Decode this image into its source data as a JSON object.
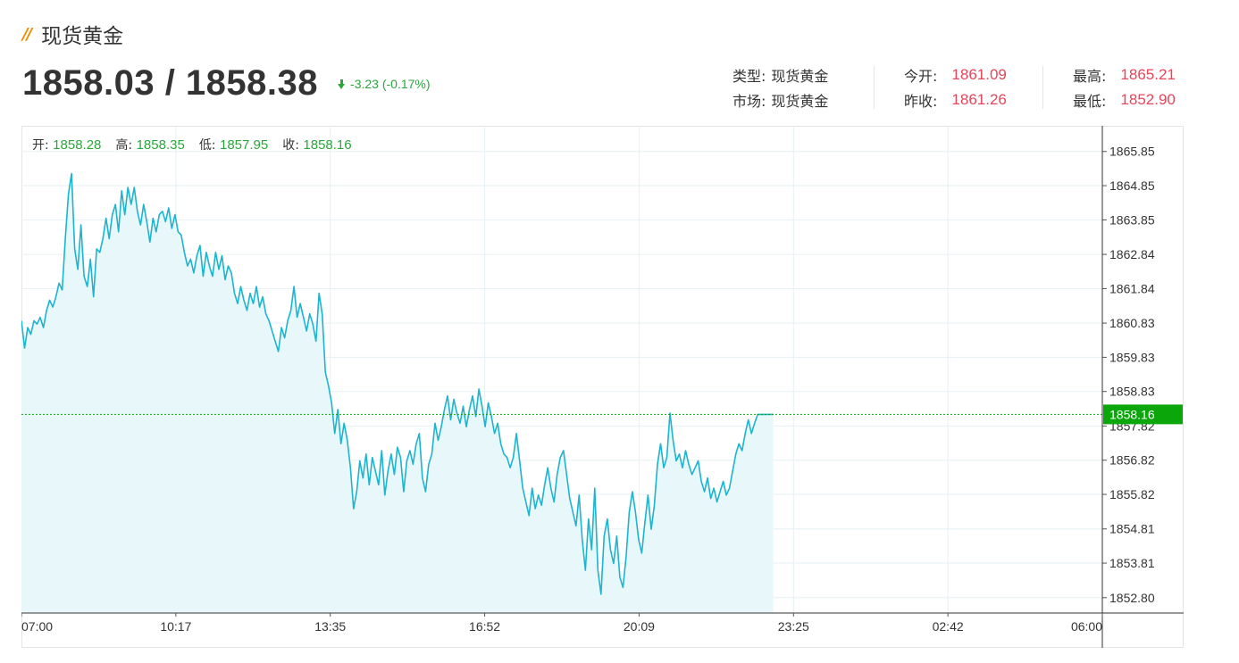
{
  "header": {
    "title_mark": "//",
    "title": "现货黄金",
    "price": "1858.03 / 1858.38",
    "change": "-3.23 (-0.17%)"
  },
  "info": {
    "type_label": "类型:",
    "type_value": "现货黄金",
    "market_label": "市场:",
    "market_value": "现货黄金",
    "open_label": "今开:",
    "open_value": "1861.09",
    "prev_close_label": "昨收:",
    "prev_close_value": "1861.26",
    "high_label": "最高:",
    "high_value": "1865.21",
    "low_label": "最低:",
    "low_value": "1852.90"
  },
  "ohlc": {
    "open_label": "开:",
    "open_value": "1858.28",
    "high_label": "高:",
    "high_value": "1858.35",
    "low_label": "低:",
    "low_value": "1857.95",
    "close_label": "收:",
    "close_value": "1858.16"
  },
  "colors": {
    "line": "#1db4cf",
    "area": "#e8f8fa",
    "price_tag": "#0aa60a",
    "up_down_green": "#2aa63c",
    "red": "#e8445a"
  },
  "chart_data": {
    "type": "area",
    "x_tick_labels": [
      "07:00",
      "10:17",
      "13:35",
      "16:52",
      "20:09",
      "23:25",
      "02:42",
      "06:00"
    ],
    "y_tick_labels": [
      "1865.85",
      "1864.85",
      "1863.85",
      "1862.84",
      "1861.84",
      "1860.83",
      "1859.83",
      "1858.83",
      "1857.82",
      "1856.82",
      "1855.82",
      "1854.81",
      "1853.81",
      "1852.80"
    ],
    "ylim": [
      1852.35,
      1866.6
    ],
    "x_minutes_range": [
      0,
      1380
    ],
    "last_price_label": "1858.16",
    "last_price": 1858.16,
    "grid": true,
    "series": [
      {
        "x_minutes": [
          0,
          4,
          8,
          12,
          16,
          20,
          24,
          28,
          32,
          36,
          40,
          44,
          48,
          52,
          56,
          60,
          64,
          68,
          72,
          76,
          80,
          84,
          88,
          92,
          96,
          100,
          104,
          108,
          112,
          116,
          120,
          124,
          128,
          132,
          136,
          140,
          144,
          148,
          152,
          156,
          160,
          164,
          168,
          172,
          176,
          180,
          184,
          188,
          192,
          196,
          200,
          204,
          208,
          212,
          216,
          220,
          224,
          228,
          232,
          236,
          240,
          244,
          248,
          252,
          256,
          260,
          264,
          268,
          272,
          276,
          280,
          284,
          288,
          292,
          296,
          300,
          304,
          308,
          312,
          316,
          320,
          324,
          328,
          332,
          336,
          340,
          344,
          348,
          352,
          356,
          360,
          364,
          368,
          372,
          376,
          380,
          384,
          388,
          392,
          396,
          400,
          404,
          408,
          412,
          416,
          420,
          424,
          428,
          432,
          436,
          440,
          444,
          448,
          452,
          456,
          460,
          464,
          468,
          472,
          476,
          480,
          484,
          488,
          492,
          496,
          500,
          504,
          508,
          512,
          516,
          520,
          524,
          528,
          532,
          536,
          540,
          544,
          548,
          552,
          556,
          560,
          564,
          568,
          572,
          576,
          580,
          584,
          588,
          592,
          596,
          600,
          604,
          608,
          612,
          616,
          620,
          624,
          628,
          632,
          636,
          640,
          644,
          648,
          652,
          656,
          660,
          664,
          668,
          672,
          676,
          680,
          684,
          688,
          692,
          696,
          700,
          704,
          708,
          712,
          716,
          720,
          724,
          728,
          732,
          736,
          740,
          744,
          748,
          752,
          756,
          760,
          764,
          768,
          772,
          776,
          780,
          784,
          788,
          792,
          796,
          800,
          804,
          808,
          812,
          816,
          820,
          824,
          828,
          832,
          836,
          840,
          844,
          848,
          852,
          856,
          860,
          864,
          868,
          872,
          876,
          880,
          884,
          888,
          892,
          896,
          900,
          904,
          908,
          912,
          916,
          920,
          924,
          928,
          932,
          936,
          940,
          944,
          948,
          952,
          956,
          960
        ],
        "values": [
          1860.9,
          1860.1,
          1860.7,
          1860.5,
          1860.9,
          1860.8,
          1861.0,
          1860.7,
          1861.2,
          1861.5,
          1861.3,
          1861.6,
          1862.0,
          1861.8,
          1863.3,
          1864.6,
          1865.2,
          1863.0,
          1862.4,
          1863.7,
          1862.2,
          1861.9,
          1862.7,
          1861.6,
          1863.0,
          1862.9,
          1863.3,
          1863.9,
          1863.3,
          1864.0,
          1864.3,
          1863.5,
          1864.7,
          1864.0,
          1864.8,
          1864.3,
          1864.8,
          1864.1,
          1863.7,
          1864.3,
          1863.8,
          1863.2,
          1863.9,
          1863.5,
          1864.0,
          1864.1,
          1863.8,
          1864.2,
          1863.6,
          1864.0,
          1863.5,
          1863.4,
          1862.9,
          1862.5,
          1862.7,
          1862.3,
          1862.8,
          1863.1,
          1862.2,
          1862.9,
          1862.5,
          1862.2,
          1862.9,
          1862.4,
          1862.8,
          1862.1,
          1862.5,
          1862.3,
          1861.7,
          1861.4,
          1861.9,
          1861.5,
          1861.2,
          1861.7,
          1861.4,
          1861.9,
          1861.3,
          1861.6,
          1861.1,
          1860.9,
          1860.6,
          1860.3,
          1860.0,
          1860.7,
          1860.4,
          1860.9,
          1861.2,
          1861.9,
          1861.0,
          1861.4,
          1861.0,
          1860.6,
          1861.1,
          1860.8,
          1860.3,
          1861.7,
          1861.1,
          1859.4,
          1859.0,
          1858.5,
          1857.6,
          1858.3,
          1857.3,
          1857.9,
          1857.4,
          1856.6,
          1855.4,
          1855.9,
          1856.8,
          1856.3,
          1857.0,
          1856.1,
          1856.9,
          1856.5,
          1856.1,
          1857.1,
          1855.8,
          1856.5,
          1857.0,
          1856.4,
          1857.2,
          1856.9,
          1855.9,
          1856.8,
          1857.1,
          1856.7,
          1857.3,
          1857.6,
          1856.3,
          1855.9,
          1856.7,
          1857.0,
          1857.9,
          1857.4,
          1857.8,
          1858.3,
          1858.7,
          1858.0,
          1858.6,
          1858.2,
          1857.9,
          1858.4,
          1857.8,
          1858.3,
          1858.7,
          1858.1,
          1858.9,
          1858.4,
          1857.8,
          1858.5,
          1858.1,
          1857.6,
          1857.9,
          1857.3,
          1857.0,
          1856.9,
          1856.6,
          1856.9,
          1857.6,
          1856.8,
          1856.0,
          1855.6,
          1855.2,
          1856.0,
          1855.4,
          1855.8,
          1855.5,
          1856.1,
          1856.6,
          1856.0,
          1855.6,
          1856.4,
          1856.9,
          1857.1,
          1856.4,
          1855.7,
          1855.3,
          1854.9,
          1855.8,
          1854.5,
          1853.6,
          1855.1,
          1854.2,
          1856.0,
          1853.6,
          1852.9,
          1854.6,
          1855.1,
          1854.2,
          1853.8,
          1854.6,
          1853.4,
          1853.1,
          1854.0,
          1855.3,
          1855.9,
          1855.3,
          1854.5,
          1854.1,
          1855.0,
          1855.8,
          1854.8,
          1855.5,
          1856.7,
          1857.3,
          1856.6,
          1856.9,
          1858.2,
          1857.4,
          1856.8,
          1857.0,
          1856.6,
          1857.1,
          1856.7,
          1856.4,
          1856.6,
          1856.8,
          1856.2,
          1855.9,
          1856.3,
          1855.7,
          1856.0,
          1855.6,
          1855.9,
          1856.2,
          1855.8,
          1856.0,
          1856.5,
          1857.0,
          1857.3,
          1857.1,
          1857.6,
          1858.0,
          1857.6,
          1857.9,
          1858.16,
          1858.16,
          1858.16,
          1858.16,
          1858.16,
          1858.16
        ]
      }
    ]
  }
}
